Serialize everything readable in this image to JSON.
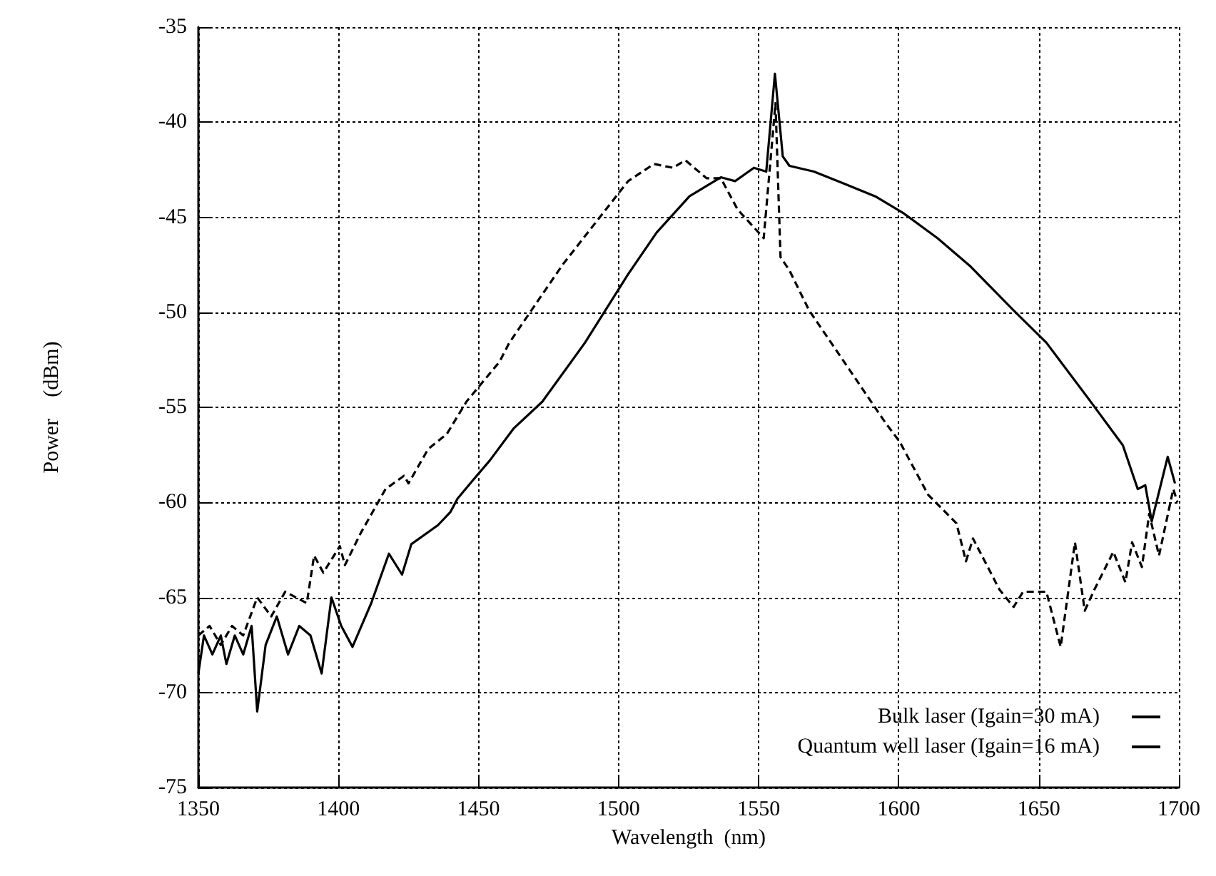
{
  "chart_data": {
    "type": "line",
    "xlabel": "Wavelength  (nm)",
    "ylabel": "Power    (dBm)",
    "xlim": [
      1350,
      1700
    ],
    "xticks": [
      1350,
      1400,
      1450,
      1500,
      1550,
      1600,
      1650,
      1700
    ],
    "ylim": [
      -75,
      -35
    ],
    "yticks": [
      -75,
      -70,
      -65,
      -60,
      -55,
      -50,
      -45,
      -40,
      -35
    ],
    "grid": true,
    "legend": "bottom right",
    "marker": "none",
    "series": [
      {
        "name": "Bulk laser (Igain=30 mA)",
        "color": "#000000",
        "line_style": "solid",
        "x": [
          1350,
          1352,
          1355,
          1358,
          1360,
          1363,
          1366,
          1369,
          1371,
          1374,
          1378,
          1382,
          1386,
          1390,
          1394,
          1397.5,
          1401,
          1405,
          1411.7,
          1418,
          1422.7,
          1426,
          1435.5,
          1440,
          1442.5,
          1448.2,
          1454,
          1462.6,
          1472.8,
          1488,
          1503.4,
          1513.6,
          1525.3,
          1536.5,
          1541.6,
          1548.3,
          1552.7,
          1555.8,
          1558.6,
          1561,
          1569.7,
          1579.9,
          1591.6,
          1601.8,
          1613.8,
          1625.7,
          1641,
          1652.7,
          1668,
          1680,
          1685.3,
          1688,
          1690.3,
          1696,
          1698.6
        ],
        "values": [
          -69,
          -67,
          -68,
          -67,
          -68.5,
          -67,
          -68,
          -66.5,
          -71,
          -67.5,
          -66,
          -68,
          -66.5,
          -67,
          -69,
          -65,
          -66.5,
          -67.6,
          -65.3,
          -62.7,
          -63.8,
          -62.2,
          -61.2,
          -60.5,
          -59.8,
          -58.8,
          -57.8,
          -56.1,
          -54.7,
          -51.6,
          -48,
          -45.8,
          -43.9,
          -42.9,
          -43.1,
          -42.4,
          -42.6,
          -37.45,
          -41.8,
          -42.3,
          -42.6,
          -43.2,
          -43.9,
          -44.8,
          -46.1,
          -47.6,
          -49.9,
          -51.6,
          -54.6,
          -57,
          -59.3,
          -59.1,
          -61,
          -57.6,
          -59
        ]
      },
      {
        "name": "Quantum well laser (Igain=16 mA)",
        "color": "#000000",
        "line_style": "dashed",
        "x": [
          1350,
          1354,
          1358,
          1362,
          1366,
          1371,
          1376,
          1381,
          1388.7,
          1391.3,
          1394.6,
          1400.5,
          1402.3,
          1408,
          1416.8,
          1423.4,
          1425,
          1432,
          1438.7,
          1445.7,
          1457.5,
          1461,
          1480,
          1503.4,
          1512.6,
          1519.4,
          1523.8,
          1531.4,
          1536.5,
          1542.5,
          1551.8,
          1556,
          1557.8,
          1561,
          1568,
          1580,
          1595.2,
          1600.3,
          1610.5,
          1620.6,
          1624,
          1626.5,
          1636,
          1641,
          1644.4,
          1652.7,
          1657.8,
          1662.9,
          1666.4,
          1669.8,
          1676.6,
          1680.9,
          1683.3,
          1686.8,
          1689.4,
          1692.9,
          1698,
          1699.5
        ],
        "values": [
          -67,
          -66.5,
          -67.5,
          -66.5,
          -67,
          -65,
          -66,
          -64.7,
          -65.3,
          -62.8,
          -63.7,
          -62.3,
          -63.3,
          -61.6,
          -59.3,
          -58.6,
          -59,
          -57.2,
          -56.4,
          -54.7,
          -52.6,
          -51.6,
          -47.5,
          -43.1,
          -42.2,
          -42.4,
          -42,
          -42.95,
          -42.95,
          -44.6,
          -46.1,
          -39,
          -47.1,
          -47.8,
          -49.9,
          -52.5,
          -55.8,
          -56.8,
          -59.6,
          -61.1,
          -63.1,
          -61.9,
          -64.6,
          -65.5,
          -64.7,
          -64.7,
          -67.6,
          -62.1,
          -65.7,
          -64.6,
          -62.6,
          -64.2,
          -62.1,
          -63.4,
          -60.6,
          -62.8,
          -59.3,
          -60
        ]
      }
    ]
  }
}
